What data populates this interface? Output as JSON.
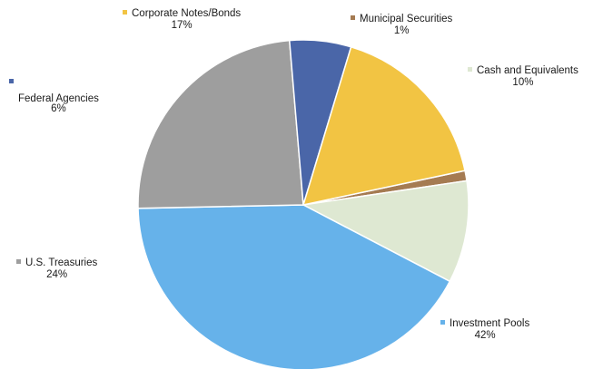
{
  "chart_data": {
    "type": "pie",
    "title": "",
    "slices": [
      {
        "label": "Municipal Securities",
        "value": 1,
        "value_label": "1%",
        "color": "#A57B52"
      },
      {
        "label": "Cash and Equivalents",
        "value": 10,
        "value_label": "10%",
        "color": "#DEE8D2"
      },
      {
        "label": "Investment Pools",
        "value": 42,
        "value_label": "42%",
        "color": "#66B2EA"
      },
      {
        "label": "U.S. Treasuries",
        "value": 24,
        "value_label": "24%",
        "color": "#9E9E9E"
      },
      {
        "label": "Federal Agencies",
        "value": 6,
        "value_label": "6%",
        "color": "#4A66A8"
      },
      {
        "label": "Corporate Notes/Bonds",
        "value": 17,
        "value_label": "17%",
        "color": "#F2C443"
      }
    ]
  }
}
